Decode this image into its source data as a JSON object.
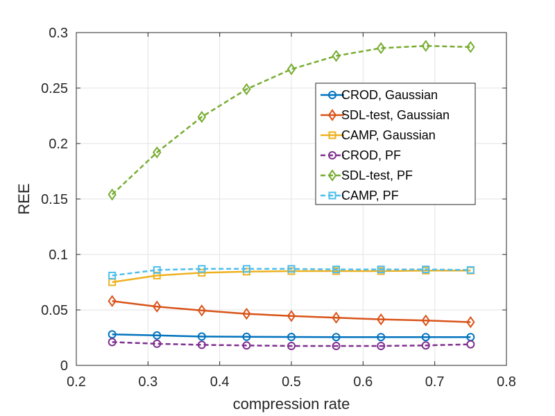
{
  "chart_data": {
    "type": "line",
    "title": "",
    "xlabel": "compression rate",
    "ylabel": "REE",
    "xlim": [
      0.2,
      0.8
    ],
    "ylim": [
      0,
      0.3
    ],
    "xticks": [
      0.2,
      0.3,
      0.4,
      0.5,
      0.6,
      0.7,
      0.8
    ],
    "xtick_labels": [
      "0.2",
      "0.3",
      "0.4",
      "0.5",
      "0.6",
      "0.7",
      "0.8"
    ],
    "yticks": [
      0,
      0.05,
      0.1,
      0.15,
      0.2,
      0.25,
      0.3
    ],
    "ytick_labels": [
      "0",
      "0.05",
      "0.1",
      "0.15",
      "0.2",
      "0.25",
      "0.3"
    ],
    "grid": true,
    "legend_position": "upper-right-inside",
    "x": [
      0.25,
      0.3125,
      0.375,
      0.4375,
      0.5,
      0.5625,
      0.625,
      0.6875,
      0.75
    ],
    "series": [
      {
        "name": "CROD, Gaussian",
        "color": "#0072BD",
        "linestyle": "solid",
        "marker": "circle",
        "values": [
          0.028,
          0.027,
          0.026,
          0.0258,
          0.0256,
          0.0255,
          0.0255,
          0.0255,
          0.0255
        ]
      },
      {
        "name": "SDL-test, Gaussian",
        "color": "#D95319",
        "linestyle": "solid",
        "marker": "diamond",
        "values": [
          0.058,
          0.053,
          0.0495,
          0.0465,
          0.0445,
          0.043,
          0.0415,
          0.0405,
          0.039
        ]
      },
      {
        "name": "CAMP, Gaussian",
        "color": "#EDB120",
        "linestyle": "solid",
        "marker": "square",
        "values": [
          0.075,
          0.081,
          0.0835,
          0.0845,
          0.085,
          0.085,
          0.085,
          0.0855,
          0.0855
        ]
      },
      {
        "name": "CROD, PF",
        "color": "#7E2F8E",
        "linestyle": "dashed",
        "marker": "circle",
        "values": [
          0.021,
          0.0195,
          0.0185,
          0.018,
          0.0175,
          0.0175,
          0.0175,
          0.018,
          0.019
        ]
      },
      {
        "name": "SDL-test, PF",
        "color": "#77AC30",
        "linestyle": "dashed",
        "marker": "diamond",
        "values": [
          0.154,
          0.192,
          0.224,
          0.249,
          0.267,
          0.279,
          0.286,
          0.288,
          0.287
        ]
      },
      {
        "name": "CAMP, PF",
        "color": "#4DBEEE",
        "linestyle": "dashed",
        "marker": "square",
        "values": [
          0.081,
          0.086,
          0.087,
          0.087,
          0.087,
          0.0865,
          0.0865,
          0.0865,
          0.086
        ]
      }
    ]
  }
}
